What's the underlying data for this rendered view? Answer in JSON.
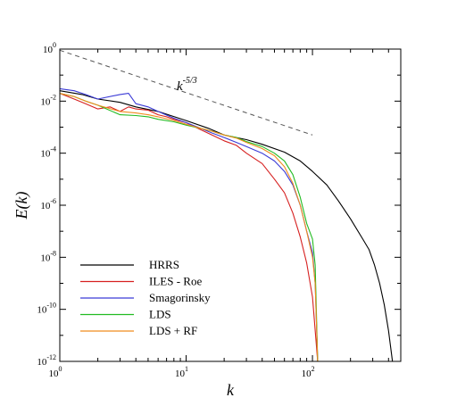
{
  "chart_data": {
    "type": "line",
    "xlabel": "k",
    "ylabel": "E(k)",
    "xscale": "log",
    "yscale": "log",
    "xlim": [
      1,
      500
    ],
    "ylim": [
      1e-12,
      1
    ],
    "x_ticks": [
      {
        "base": "10",
        "exp": "0",
        "value": 1
      },
      {
        "base": "10",
        "exp": "1",
        "value": 10
      },
      {
        "base": "10",
        "exp": "2",
        "value": 100
      }
    ],
    "y_ticks": [
      {
        "base": "10",
        "exp": "0",
        "value": 1
      },
      {
        "base": "10",
        "exp": "-2",
        "value": 0.01
      },
      {
        "base": "10",
        "exp": "-4",
        "value": 0.0001
      },
      {
        "base": "10",
        "exp": "-6",
        "value": 1e-06
      },
      {
        "base": "10",
        "exp": "-8",
        "value": 1e-08
      },
      {
        "base": "10",
        "exp": "-10",
        "value": 1e-10
      },
      {
        "base": "10",
        "exp": "-12",
        "value": 1e-12
      }
    ],
    "legend_position": "lower-left",
    "annotation": {
      "base": "k",
      "exp": "-5/3",
      "x_range": [
        1,
        100
      ],
      "y_range": [
        0.9,
        0.0005
      ]
    },
    "series": [
      {
        "name": "HRRS",
        "color": "#000000",
        "points": [
          [
            1,
            0.025
          ],
          [
            1.5,
            0.018
          ],
          [
            2,
            0.012
          ],
          [
            3,
            0.009
          ],
          [
            4,
            0.006
          ],
          [
            6,
            0.004
          ],
          [
            10,
            0.0018
          ],
          [
            15,
            0.0009
          ],
          [
            20,
            0.0005
          ],
          [
            30,
            0.00033
          ],
          [
            40,
            0.00022
          ],
          [
            60,
            0.00011
          ],
          [
            80,
            5e-05
          ],
          [
            100,
            2e-05
          ],
          [
            130,
            6e-06
          ],
          [
            160,
            1.5e-06
          ],
          [
            200,
            3e-07
          ],
          [
            250,
            5e-08
          ],
          [
            280,
            2e-08
          ],
          [
            310,
            5e-09
          ],
          [
            340,
            1e-09
          ],
          [
            370,
            1.5e-10
          ],
          [
            400,
            1.5e-11
          ],
          [
            430,
            1e-12
          ]
        ]
      },
      {
        "name": "ILES - Roe",
        "color": "#d62020",
        "points": [
          [
            1,
            0.02
          ],
          [
            1.3,
            0.012
          ],
          [
            1.6,
            0.008
          ],
          [
            2,
            0.005
          ],
          [
            2.5,
            0.006
          ],
          [
            3,
            0.004
          ],
          [
            3.5,
            0.006
          ],
          [
            4,
            0.005
          ],
          [
            5,
            0.0045
          ],
          [
            6,
            0.003
          ],
          [
            7,
            0.0025
          ],
          [
            8,
            0.002
          ],
          [
            10,
            0.0015
          ],
          [
            13,
            0.0008
          ],
          [
            16,
            0.0005
          ],
          [
            20,
            0.0003
          ],
          [
            25,
            0.0002
          ],
          [
            30,
            0.0001
          ],
          [
            40,
            4e-05
          ],
          [
            50,
            1e-05
          ],
          [
            60,
            3e-06
          ],
          [
            70,
            5e-07
          ],
          [
            80,
            6e-08
          ],
          [
            90,
            6e-09
          ],
          [
            100,
            3e-10
          ],
          [
            110,
            1e-12
          ]
        ]
      },
      {
        "name": "Smagorinsky",
        "color": "#3a3ad6",
        "points": [
          [
            1,
            0.03
          ],
          [
            1.3,
            0.025
          ],
          [
            1.6,
            0.018
          ],
          [
            2,
            0.012
          ],
          [
            3,
            0.018
          ],
          [
            3.5,
            0.02
          ],
          [
            4,
            0.008
          ],
          [
            5,
            0.006
          ],
          [
            6,
            0.004
          ],
          [
            8,
            0.0022
          ],
          [
            10,
            0.0015
          ],
          [
            13,
            0.0009
          ],
          [
            16,
            0.0006
          ],
          [
            20,
            0.0004
          ],
          [
            25,
            0.00026
          ],
          [
            30,
            0.00018
          ],
          [
            40,
            0.0001
          ],
          [
            50,
            5e-05
          ],
          [
            60,
            2e-05
          ],
          [
            70,
            6e-06
          ],
          [
            80,
            1e-06
          ],
          [
            90,
            1e-07
          ],
          [
            100,
            1.5e-08
          ],
          [
            105,
            1e-09
          ],
          [
            110,
            1e-12
          ]
        ]
      },
      {
        "name": "LDS",
        "color": "#22bb22",
        "points": [
          [
            1,
            0.02
          ],
          [
            1.3,
            0.015
          ],
          [
            1.6,
            0.01
          ],
          [
            2,
            0.007
          ],
          [
            3,
            0.003
          ],
          [
            4,
            0.0028
          ],
          [
            5,
            0.0025
          ],
          [
            6,
            0.002
          ],
          [
            8,
            0.0016
          ],
          [
            10,
            0.0012
          ],
          [
            13,
            0.0009
          ],
          [
            16,
            0.0007
          ],
          [
            20,
            0.0005
          ],
          [
            25,
            0.0004
          ],
          [
            30,
            0.00028
          ],
          [
            40,
            0.00018
          ],
          [
            50,
            0.0001
          ],
          [
            60,
            5e-05
          ],
          [
            70,
            1.5e-05
          ],
          [
            80,
            2e-06
          ],
          [
            90,
            2e-07
          ],
          [
            100,
            5e-08
          ],
          [
            105,
            5e-09
          ],
          [
            110,
            1e-12
          ]
        ]
      },
      {
        "name": "LDS + RF",
        "color": "#f08c1e",
        "points": [
          [
            1,
            0.02
          ],
          [
            1.3,
            0.015
          ],
          [
            1.6,
            0.01
          ],
          [
            2,
            0.007
          ],
          [
            3,
            0.004
          ],
          [
            4,
            0.0035
          ],
          [
            5,
            0.003
          ],
          [
            6,
            0.0025
          ],
          [
            8,
            0.0018
          ],
          [
            10,
            0.0013
          ],
          [
            13,
            0.0009
          ],
          [
            16,
            0.0007
          ],
          [
            20,
            0.0005
          ],
          [
            25,
            0.00038
          ],
          [
            30,
            0.00026
          ],
          [
            40,
            0.00015
          ],
          [
            50,
            8e-05
          ],
          [
            60,
            3e-05
          ],
          [
            70,
            7e-06
          ],
          [
            80,
            1e-06
          ],
          [
            90,
            1e-07
          ],
          [
            100,
            1e-08
          ],
          [
            105,
            1e-09
          ],
          [
            110,
            1e-12
          ]
        ]
      }
    ]
  }
}
